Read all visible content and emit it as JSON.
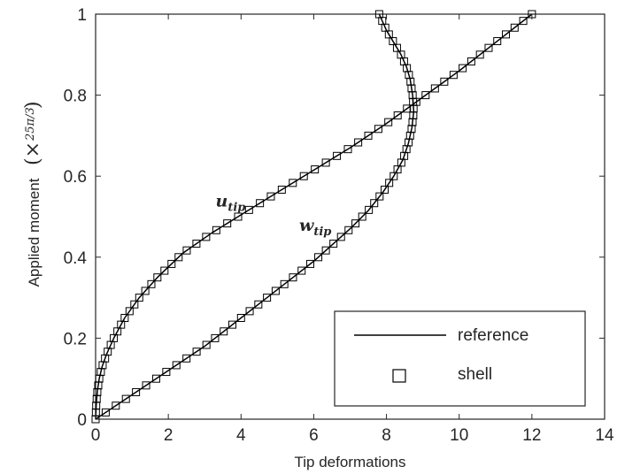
{
  "chart_data": {
    "type": "line",
    "title": "",
    "xlabel": "Tip deformations",
    "ylabel": "Applied moment",
    "ylabel_factor": "25π/3",
    "xlim": [
      0,
      14
    ],
    "ylim": [
      0,
      1
    ],
    "x_ticks": [
      0,
      2,
      4,
      6,
      8,
      10,
      12,
      14
    ],
    "y_ticks": [
      0,
      0.2,
      0.4,
      0.6,
      0.8,
      1
    ],
    "x_tick_labels": [
      "0",
      "2",
      "4",
      "6",
      "8",
      "10",
      "12",
      "14"
    ],
    "y_tick_labels": [
      "0",
      "0.2",
      "0.4",
      "0.6",
      "0.8",
      "1"
    ],
    "grid": false,
    "legend": {
      "position": "bottom-right",
      "entries": [
        {
          "label": "reference",
          "style": "line"
        },
        {
          "label": "shell",
          "style": "square-marker"
        }
      ]
    },
    "annotations": [
      {
        "text": "u",
        "subscript": "tip",
        "x": 3.3,
        "y": 0.525
      },
      {
        "text": "w",
        "subscript": "tip",
        "x": 5.6,
        "y": 0.465
      }
    ],
    "series": [
      {
        "name": "reference",
        "marker": "none",
        "curves": [
          {
            "label": "u_tip",
            "x": [
              0,
              0.01,
              0.02,
              0.05,
              0.1,
              0.18,
              0.3,
              0.5,
              0.8,
              1.2,
              1.7,
              2.4,
              3.2,
              4.1,
              5.0,
              6.0,
              7.0,
              8.0,
              9.0,
              10.0,
              11.0,
              12.0
            ],
            "y": [
              0,
              0.02,
              0.04,
              0.07,
              0.1,
              0.13,
              0.16,
              0.2,
              0.25,
              0.3,
              0.35,
              0.41,
              0.46,
              0.51,
              0.56,
              0.615,
              0.67,
              0.73,
              0.795,
              0.86,
              0.93,
              1.0
            ]
          },
          {
            "label": "w_tip",
            "x": [
              0,
              0.5,
              1.0,
              1.5,
              2.0,
              2.5,
              3.0,
              3.5,
              4.0,
              4.5,
              5.0,
              5.5,
              6.0,
              6.5,
              7.0,
              7.5,
              7.9,
              8.2,
              8.45,
              8.6,
              8.7,
              8.75,
              8.72,
              8.65,
              8.55,
              8.4,
              8.2,
              8.0,
              7.8
            ],
            "y": [
              0,
              0.03,
              0.06,
              0.09,
              0.12,
              0.15,
              0.18,
              0.215,
              0.25,
              0.285,
              0.32,
              0.355,
              0.39,
              0.43,
              0.47,
              0.515,
              0.56,
              0.6,
              0.64,
              0.68,
              0.72,
              0.76,
              0.8,
              0.84,
              0.87,
              0.9,
              0.93,
              0.96,
              1.0
            ]
          }
        ]
      },
      {
        "name": "shell",
        "marker": "square",
        "points_per_curve": 60,
        "curves": [
          {
            "label": "u_tip"
          },
          {
            "label": "w_tip"
          }
        ]
      }
    ]
  }
}
